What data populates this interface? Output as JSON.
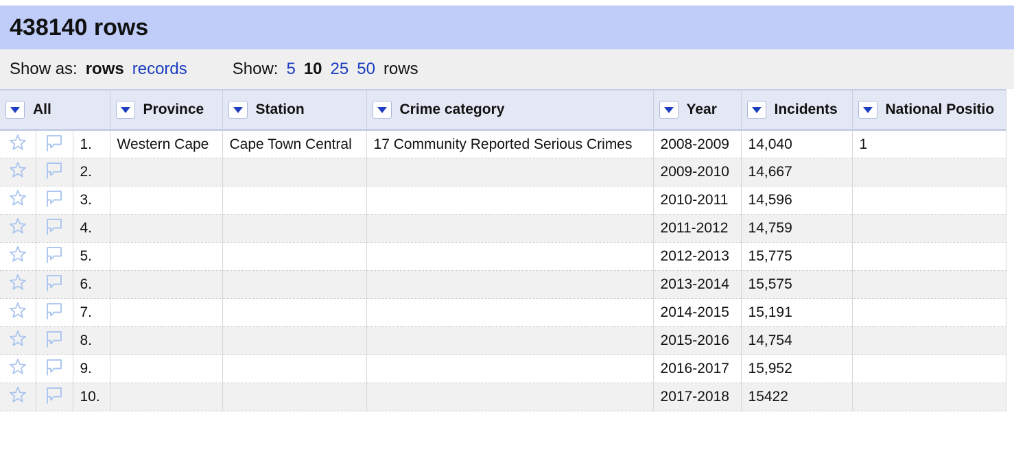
{
  "header": {
    "title": "438140 rows"
  },
  "controls": {
    "show_as_label": "Show as:",
    "mode_current": "rows",
    "mode_other": "records",
    "show_label": "Show:",
    "page_sizes": [
      "5",
      "10",
      "25",
      "50"
    ],
    "page_size_current": "10",
    "rows_label": "rows"
  },
  "table": {
    "columns": [
      "All",
      "Province",
      "Station",
      "Crime category",
      "Year",
      "Incidents",
      "National Positio"
    ],
    "rows": [
      {
        "idx": "1.",
        "province": "Western Cape",
        "station": "Cape Town Central",
        "category": "17 Community Reported Serious Crimes",
        "year": "2008-2009",
        "incidents": "14,040",
        "position": "1"
      },
      {
        "idx": "2.",
        "province": "",
        "station": "",
        "category": "",
        "year": "2009-2010",
        "incidents": "14,667",
        "position": ""
      },
      {
        "idx": "3.",
        "province": "",
        "station": "",
        "category": "",
        "year": "2010-2011",
        "incidents": "14,596",
        "position": ""
      },
      {
        "idx": "4.",
        "province": "",
        "station": "",
        "category": "",
        "year": "2011-2012",
        "incidents": "14,759",
        "position": ""
      },
      {
        "idx": "5.",
        "province": "",
        "station": "",
        "category": "",
        "year": "2012-2013",
        "incidents": "15,775",
        "position": ""
      },
      {
        "idx": "6.",
        "province": "",
        "station": "",
        "category": "",
        "year": "2013-2014",
        "incidents": "15,575",
        "position": ""
      },
      {
        "idx": "7.",
        "province": "",
        "station": "",
        "category": "",
        "year": "2014-2015",
        "incidents": "15,191",
        "position": ""
      },
      {
        "idx": "8.",
        "province": "",
        "station": "",
        "category": "",
        "year": "2015-2016",
        "incidents": "14,754",
        "position": ""
      },
      {
        "idx": "9.",
        "province": "",
        "station": "",
        "category": "",
        "year": "2016-2017",
        "incidents": "15,952",
        "position": ""
      },
      {
        "idx": "10.",
        "province": "",
        "station": "",
        "category": "",
        "year": "2017-2018",
        "incidents": "15422",
        "position": ""
      }
    ]
  },
  "colors": {
    "header_bg": "#bfcdf8",
    "link": "#1a3dbf",
    "dropdown_arrow": "#1d3fbf",
    "icon_outline": "#a9c4ef"
  },
  "icons": {
    "row_star": "star-icon",
    "row_flag": "flag-icon",
    "column_menu": "dropdown-arrow-icon"
  }
}
